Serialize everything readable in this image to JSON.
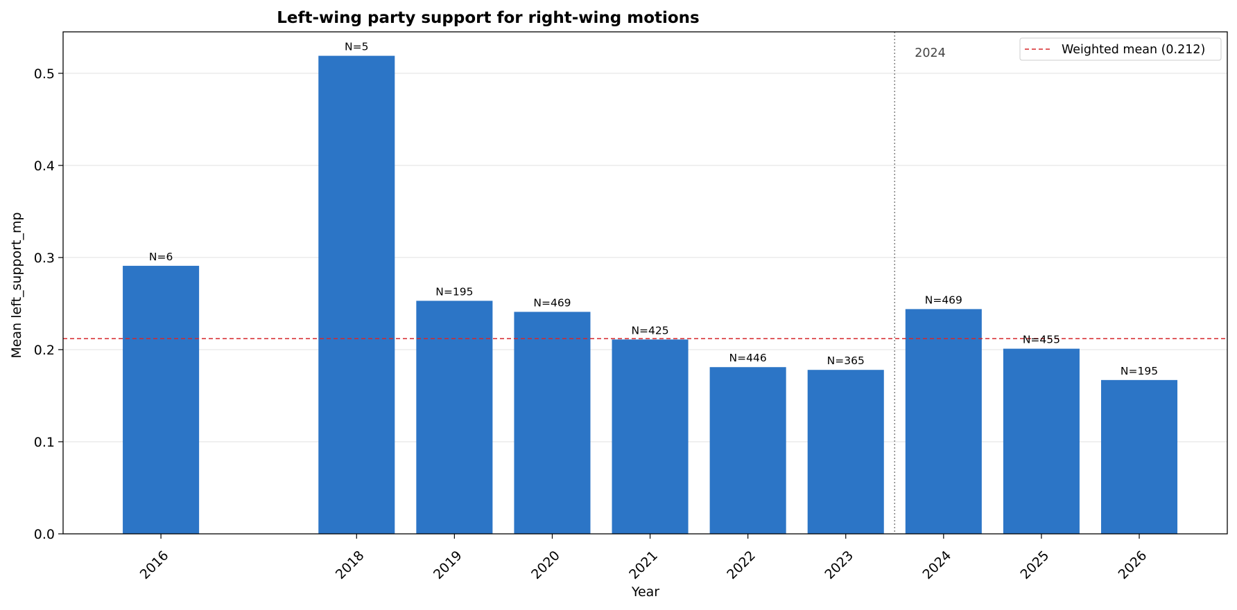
{
  "chart_data": {
    "type": "bar",
    "title": "Left-wing party support for right-wing motions",
    "xlabel": "Year",
    "ylabel": "Mean left_support_mp",
    "x": [
      2016,
      2018,
      2019,
      2020,
      2021,
      2022,
      2023,
      2024,
      2025,
      2026
    ],
    "values": [
      0.291,
      0.519,
      0.253,
      0.241,
      0.211,
      0.181,
      0.178,
      0.244,
      0.201,
      0.167
    ],
    "bar_labels": [
      "N=6",
      "N=5",
      "N=195",
      "N=469",
      "N=425",
      "N=446",
      "N=365",
      "N=469",
      "N=455",
      "N=195"
    ],
    "xlim": [
      2015.0,
      2026.9
    ],
    "ylim": [
      0,
      0.545
    ],
    "yticks": [
      0.0,
      0.1,
      0.2,
      0.3,
      0.4,
      0.5
    ],
    "ytick_labels": [
      "0.0",
      "0.1",
      "0.2",
      "0.3",
      "0.4",
      "0.5"
    ],
    "grid": "y",
    "bar_color": "#2c75c6",
    "reference_line": {
      "type": "horizontal",
      "value": 0.212,
      "label": "Weighted mean (0.212)",
      "color": "#d62728",
      "style": "dashed"
    },
    "marker_line": {
      "type": "vertical",
      "x": 2023.5,
      "label": "2024",
      "color": "#808080",
      "style": "dotted"
    },
    "legend": {
      "placement": "top-right",
      "entries": [
        "Weighted mean (0.212)"
      ]
    }
  }
}
